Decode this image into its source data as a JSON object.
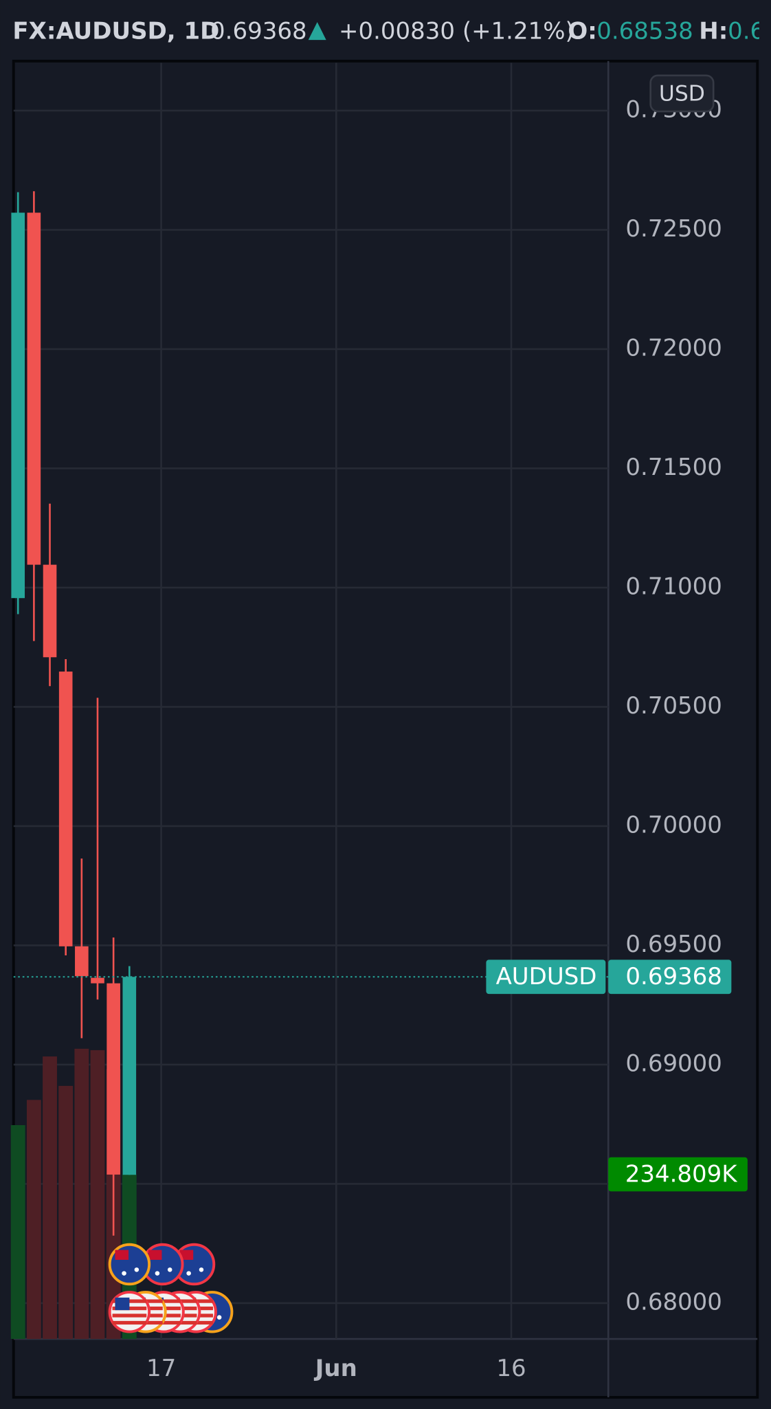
{
  "header": {
    "symbol": "FX:AUDUSD, 1D",
    "arrow": "▲",
    "change": "+0.00830 (+1.21%)",
    "open_label": "O:",
    "high_label": "H:"
  },
  "chart_data": {
    "type": "candlestick",
    "open": [
      0.70956,
      0.72572,
      0.71096,
      0.70648,
      0.69496,
      0.69364,
      0.69341,
      0.68538
    ],
    "high": [
      0.72658,
      0.72662,
      0.71352,
      0.707,
      0.69864,
      0.70538,
      0.69533,
      0.69413
    ],
    "low": [
      0.70889,
      0.70776,
      0.70587,
      0.69458,
      0.69111,
      0.69273,
      0.68283,
      0.68538
    ],
    "close": [
      0.72572,
      0.71096,
      0.70708,
      0.69496,
      0.69371,
      0.69341,
      0.68539,
      0.69368
    ],
    "up_color": "#26a69a",
    "down_color": "#f05350",
    "volume": {
      "values": [
        305000,
        341000,
        403000,
        361000,
        414000,
        412000,
        385000,
        234809
      ],
      "value_labels": [
        null,
        null,
        null,
        null,
        null,
        null,
        null,
        "234.809K"
      ],
      "up_color": "#0f4b22",
      "down_color": "#4e1f25",
      "label_color": "#008a00"
    },
    "symbol_tag": "AUDUSD",
    "currency": "USD",
    "ylim": [
      0.6785,
      0.732
    ],
    "yticks": [
      {
        "value": 0.68,
        "label": "0.68000"
      },
      {
        "value": 0.685,
        "label": "0.68500"
      },
      {
        "value": 0.69,
        "label": "0.69000"
      },
      {
        "value": 0.695,
        "label": "0.69500"
      },
      {
        "value": 0.7,
        "label": "0.70000"
      },
      {
        "value": 0.705,
        "label": "0.70500"
      },
      {
        "value": 0.71,
        "label": "0.71000"
      },
      {
        "value": 0.715,
        "label": "0.71500"
      },
      {
        "value": 0.72,
        "label": "0.72000"
      },
      {
        "value": 0.725,
        "label": "0.72500"
      },
      {
        "value": 0.73,
        "label": "0.73000"
      }
    ],
    "xlim": [
      -0.28,
      37.1
    ],
    "xticks": [
      {
        "value": 9,
        "label": "17"
      },
      {
        "value": 20,
        "label": "Jun"
      },
      {
        "value": 31,
        "label": "16"
      }
    ],
    "grid": true
  }
}
